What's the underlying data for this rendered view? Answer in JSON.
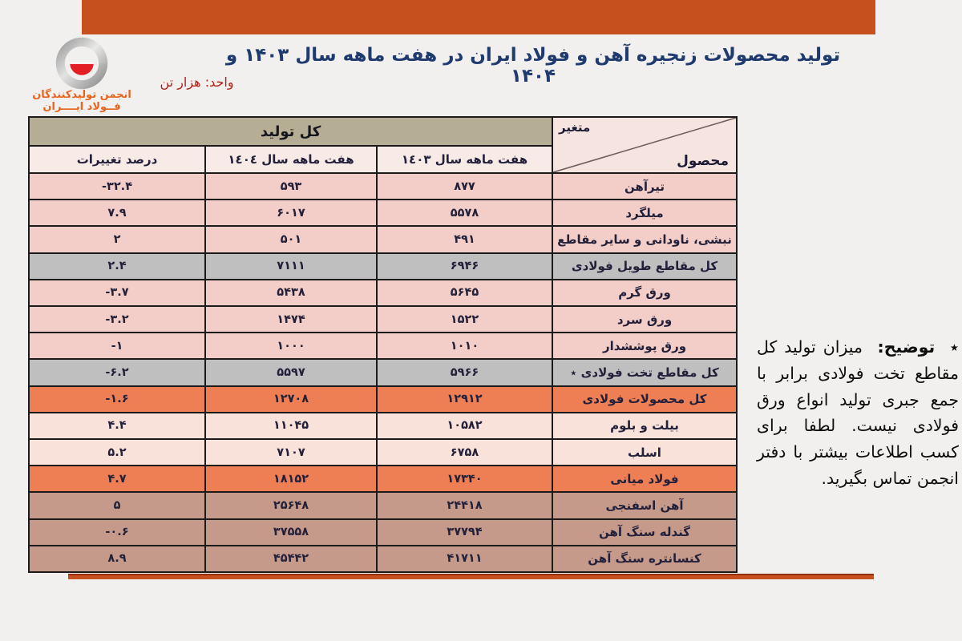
{
  "page": {
    "background": "#f1f0ee",
    "accent_orange": "#c6511e",
    "title_navy": "#1e3a6e",
    "unit_red": "#b02418"
  },
  "header": {
    "title": "تولید محصولات زنجیره آهن و فولاد ایران در هفت ماهه سال ۱۴۰۳ و ۱۴۰۴",
    "unit_label": "واحد: هزار تن",
    "logo": {
      "line1": "انجمن تولیدکنندگان",
      "line2": "فــولاد ایــــران",
      "text_color": "#e8641e",
      "swirl_gray": "#9a9a9a",
      "bowl_red": "#e31e24"
    }
  },
  "table": {
    "merged_header": "کل تولید",
    "corner": {
      "top": "متغیر",
      "bottom": "محصول"
    },
    "columns": {
      "y1403": "هفت ماهه سال ١٤٠٣",
      "y1404": "هفت ماهه سال ١٤٠٤",
      "change": "درصد تغییرات"
    },
    "row_colors": {
      "pink": "#f3cdc7",
      "gray": "#bfbfbf",
      "orange": "#ee7e54",
      "cream": "#f9e2da",
      "rose": "#c69a8b"
    },
    "rows": [
      {
        "product": "تیرآهن",
        "y1403": "۸۷۷",
        "y1404": "۵۹۳",
        "change": "-۳۲.۴",
        "type": "pink"
      },
      {
        "product": "میلگرد",
        "y1403": "۵۵۷۸",
        "y1404": "۶۰۱۷",
        "change": "۷.۹",
        "type": "pink"
      },
      {
        "product": "نبشی، ناودانی و سایر مقاطع",
        "y1403": "۴۹۱",
        "y1404": "۵۰۱",
        "change": "۲",
        "type": "pink"
      },
      {
        "product": "کل مقاطع طویل فولادی",
        "y1403": "۶۹۴۶",
        "y1404": "۷۱۱۱",
        "change": "۲.۴",
        "type": "gray"
      },
      {
        "product": "ورق گرم",
        "y1403": "۵۶۴۵",
        "y1404": "۵۴۳۸",
        "change": "-۳.۷",
        "type": "pink"
      },
      {
        "product": "ورق سرد",
        "y1403": "۱۵۲۲",
        "y1404": "۱۴۷۴",
        "change": "-۳.۲",
        "type": "pink"
      },
      {
        "product": "ورق پوششدار",
        "y1403": "۱۰۱۰",
        "y1404": "۱۰۰۰",
        "change": "-۱",
        "type": "pink"
      },
      {
        "product": "کل مقاطع تخت فولادی ٭",
        "y1403": "۵۹۶۶",
        "y1404": "۵۵۹۷",
        "change": "-۶.۲",
        "type": "gray"
      },
      {
        "product": "کل محصولات فولادی",
        "y1403": "۱۲۹۱۲",
        "y1404": "۱۲۷۰۸",
        "change": "-۱.۶",
        "type": "orange"
      },
      {
        "product": "بیلت و بلوم",
        "y1403": "۱۰۵۸۲",
        "y1404": "۱۱۰۴۵",
        "change": "۴.۴",
        "type": "cream"
      },
      {
        "product": "اسلب",
        "y1403": "۶۷۵۸",
        "y1404": "۷۱۰۷",
        "change": "۵.۲",
        "type": "cream"
      },
      {
        "product": "فولاد میانی",
        "y1403": "۱۷۳۴۰",
        "y1404": "۱۸۱۵۲",
        "change": "۴.۷",
        "type": "orange"
      },
      {
        "product": "آهن اسفنجی",
        "y1403": "۲۴۴۱۸",
        "y1404": "۲۵۶۴۸",
        "change": "۵",
        "type": "rose"
      },
      {
        "product": "گندله سنگ آهن",
        "y1403": "۳۷۷۹۴",
        "y1404": "۳۷۵۵۸",
        "change": "-۰.۶",
        "type": "rose"
      },
      {
        "product": "کنسانتره سنگ آهن",
        "y1403": "۴۱۷۱۱",
        "y1404": "۴۵۴۴۲",
        "change": "۸.۹",
        "type": "rose"
      }
    ]
  },
  "note": {
    "marker": "٭",
    "label": "توضیح:",
    "text": "میزان تولید کل مقاطع تخت فولادی برابر با جمع جبری تولید انواع ورق فولادی نیست. لطفا برای کسب اطلاعات بیشتر با دفتر انجمن تماس بگیرید."
  },
  "chart_data": {
    "type": "table",
    "title": "تولید محصولات زنجیره آهن و فولاد ایران در هفت ماهه سال ۱۴۰۳ و ۱۴۰۴",
    "unit": "هزار تن (thousand tons)",
    "columns": [
      "محصول",
      "هفت ماهه سال 1403",
      "هفت ماهه سال 1404",
      "درصد تغییرات"
    ],
    "rows": [
      [
        "تیرآهن",
        877,
        593,
        -32.4
      ],
      [
        "میلگرد",
        5578,
        6017,
        7.9
      ],
      [
        "نبشی، ناودانی و سایر مقاطع",
        491,
        501,
        2
      ],
      [
        "کل مقاطع طویل فولادی",
        6946,
        7111,
        2.4
      ],
      [
        "ورق گرم",
        5645,
        5438,
        -3.7
      ],
      [
        "ورق سرد",
        1522,
        1474,
        -3.2
      ],
      [
        "ورق پوششدار",
        1010,
        1000,
        -1
      ],
      [
        "کل مقاطع تخت فولادی",
        5966,
        5597,
        -6.2
      ],
      [
        "کل محصولات فولادی",
        12912,
        12708,
        -1.6
      ],
      [
        "بیلت و بلوم",
        10582,
        11045,
        4.4
      ],
      [
        "اسلب",
        6758,
        7107,
        5.2
      ],
      [
        "فولاد میانی",
        17340,
        18152,
        4.7
      ],
      [
        "آهن اسفنجی",
        24418,
        25648,
        5
      ],
      [
        "گندله سنگ آهن",
        37794,
        37558,
        -0.6
      ],
      [
        "کنسانتره سنگ آهن",
        41711,
        45442,
        8.9
      ]
    ]
  }
}
